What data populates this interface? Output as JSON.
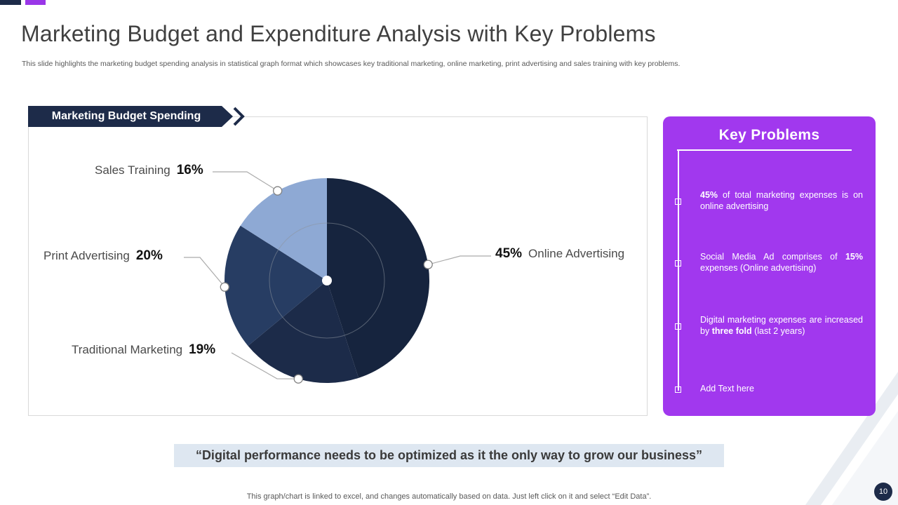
{
  "page": {
    "title": "Marketing Budget and Expenditure Analysis with Key Problems",
    "subtitle": "This slide highlights the marketing budget spending analysis in statistical graph format which showcases key traditional marketing, online marketing, print advertising and sales training with key problems."
  },
  "chart_section": {
    "badge_label": "Marketing Budget Spending"
  },
  "chart_data": {
    "type": "pie",
    "title": "Marketing Budget Spending",
    "unit": "%",
    "start_angle_deg": 0,
    "direction": "clockwise",
    "slices": [
      {
        "label": "Online Advertising",
        "value": 45,
        "color": "#16243E"
      },
      {
        "label": "Traditional Marketing",
        "value": 19,
        "color": "#1C2B49"
      },
      {
        "label": "Print Advertising",
        "value": 20,
        "color": "#273D63"
      },
      {
        "label": "Sales Training",
        "value": 16,
        "color": "#8EA9D4"
      }
    ]
  },
  "key_problems": {
    "title": "Key Problems",
    "panel_color": "#A138EE",
    "items": [
      {
        "segments": [
          {
            "text": "45%",
            "bold": true
          },
          {
            "text": " of total marketing expenses is on online advertising",
            "bold": false
          }
        ]
      },
      {
        "segments": [
          {
            "text": "Social Media Ad comprises of ",
            "bold": false
          },
          {
            "text": "15%",
            "bold": true
          },
          {
            "text": " expenses (Online advertising)",
            "bold": false
          }
        ]
      },
      {
        "segments": [
          {
            "text": "Digital marketing expenses are increased by ",
            "bold": false
          },
          {
            "text": "three fold",
            "bold": true
          },
          {
            "text": " (last 2 years)",
            "bold": false
          }
        ]
      },
      {
        "segments": [
          {
            "text": "Add Text here",
            "bold": false
          }
        ]
      }
    ]
  },
  "quote": {
    "text": "“Digital performance needs to be optimized as it the only way to grow our business”"
  },
  "footer": {
    "note": "This graph/chart is linked to excel,  and changes automatically based on data. Just left click on it and select “Edit Data”.",
    "page_number": "10"
  }
}
